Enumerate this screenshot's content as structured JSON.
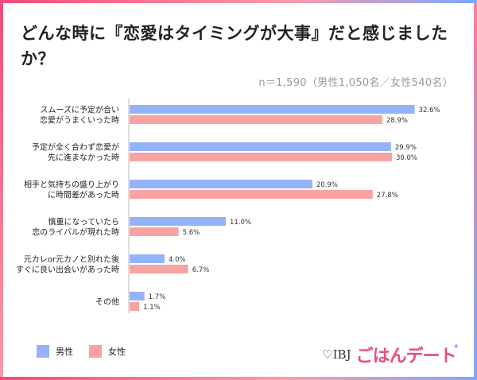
{
  "title": "どんな時に『恋愛はタイミングが大事』だと感じましたか？",
  "note": "n＝1,590（男性1,050名／女性540名）",
  "colors": {
    "male": "#93b4fb",
    "female": "#f8a3a3"
  },
  "legend": {
    "male": "男性",
    "female": "女性"
  },
  "logo": {
    "ibj": "♡IBJ",
    "brand": "ごはんデート"
  },
  "chart_data": {
    "type": "bar",
    "orientation": "horizontal",
    "categories": [
      [
        "スムーズに予定が合い",
        "恋愛がうまくいった時"
      ],
      [
        "予定が全く合わず恋愛が",
        "先に進まなかった時"
      ],
      [
        "相手と気持ちの盛り上がり",
        "に時間差があった時"
      ],
      [
        "慎重になっていたら",
        "恋のライバルが現れた時"
      ],
      [
        "元カレor元カノと別れた後",
        "すぐに良い出会いがあった時"
      ],
      [
        "その他"
      ]
    ],
    "series": [
      {
        "name": "男性",
        "values": [
          32.6,
          29.9,
          20.9,
          11.0,
          4.0,
          1.7
        ],
        "labels": [
          "32.6%",
          "29.9%",
          "20.9%",
          "11.0%",
          "4.0%",
          "1.7%"
        ]
      },
      {
        "name": "女性",
        "values": [
          28.9,
          30.0,
          27.8,
          5.6,
          6.7,
          1.1
        ],
        "labels": [
          "28.9%",
          "30.0%",
          "27.8%",
          "5.6%",
          "6.7%",
          "1.1%"
        ]
      }
    ],
    "xlim": [
      0,
      35
    ],
    "grid": false,
    "legend_position": "bottom-left"
  }
}
